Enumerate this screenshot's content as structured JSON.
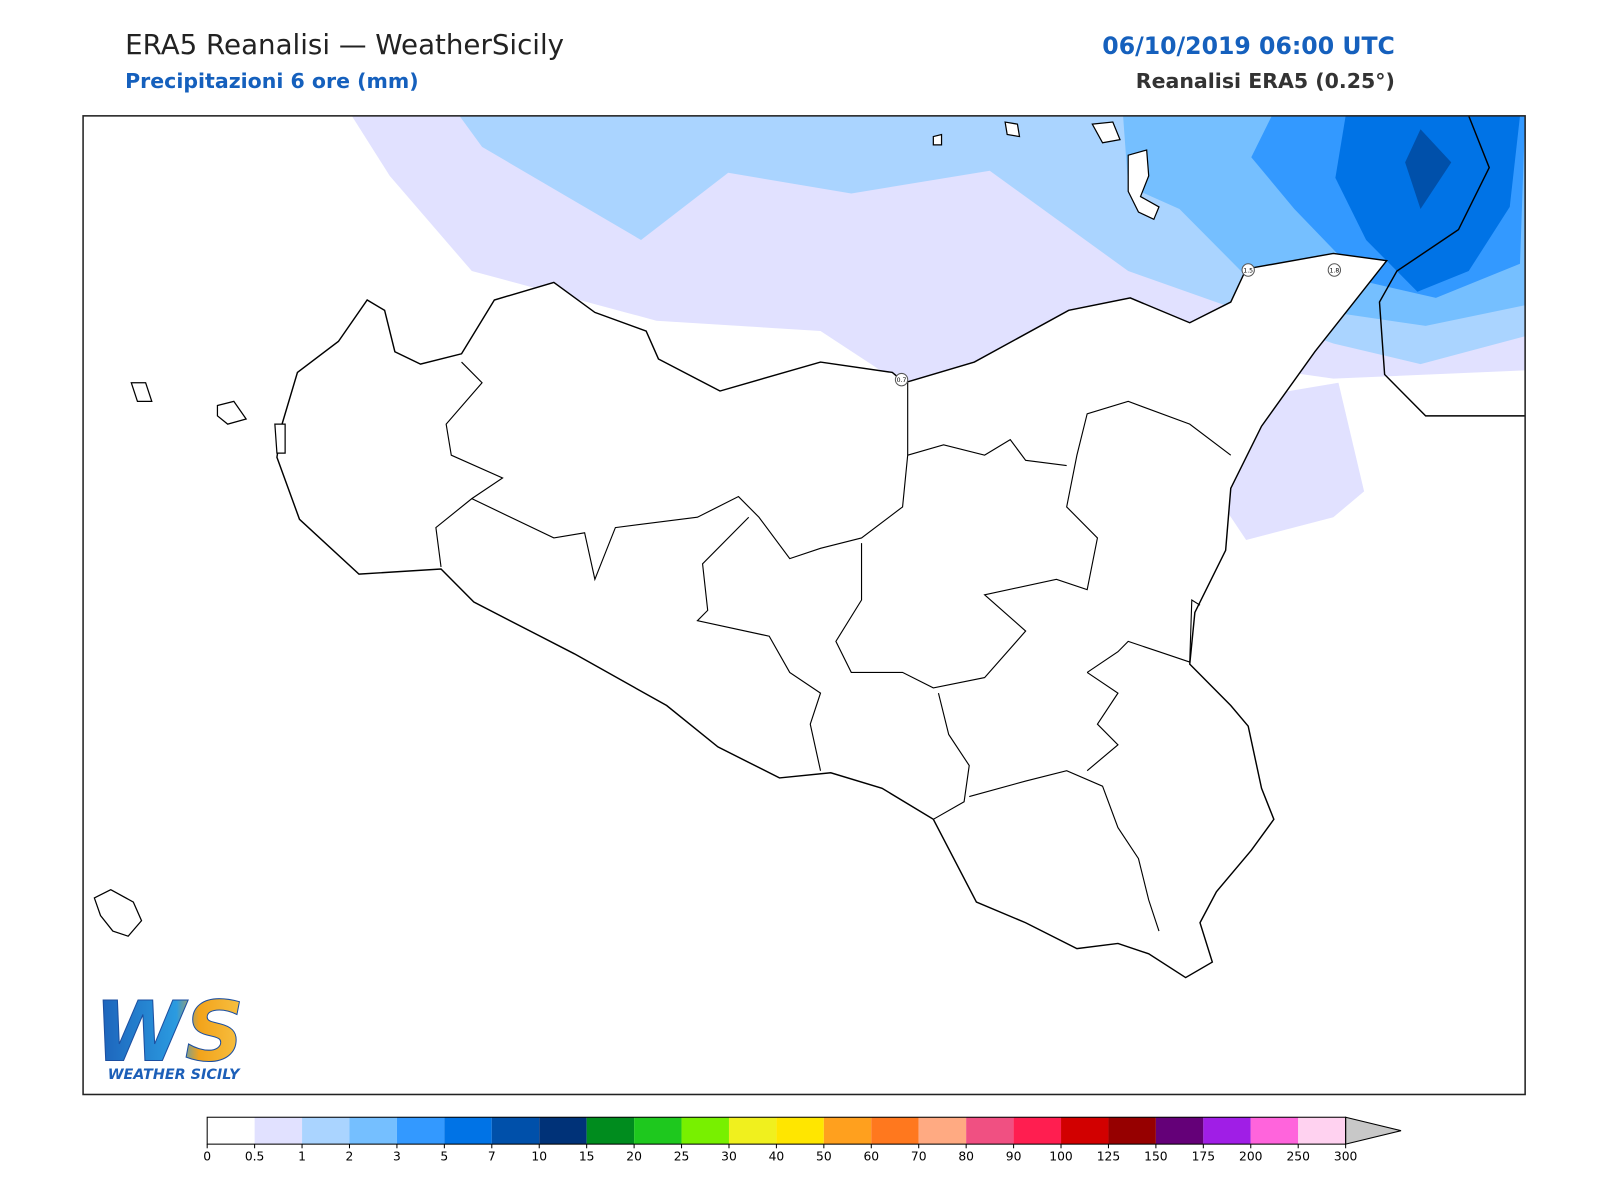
{
  "header": {
    "title": "ERA5 Reanalisi — WeatherSicily",
    "subtitle": "Precipitazioni 6 ore (mm)",
    "date": "06/10/2019 06:00 UTC",
    "model": "Reanalisi ERA5 (0.25°)"
  },
  "stations": [
    {
      "label": "1.5"
    },
    {
      "label": "1.8"
    },
    {
      "label": "0.7"
    }
  ],
  "logo": {
    "letters": "WS",
    "text": "WEATHER SICILY"
  },
  "colorbar": {
    "ticks": [
      0,
      0.5,
      1,
      2,
      3,
      5,
      7,
      10,
      15,
      20,
      25,
      30,
      40,
      50,
      60,
      70,
      80,
      90,
      100,
      125,
      150,
      175,
      200,
      250,
      300
    ],
    "colors": [
      "#ffffff",
      "#e1e1ff",
      "#aad4ff",
      "#75bfff",
      "#3399ff",
      "#0073e6",
      "#0050aa",
      "#003278",
      "#008c1e",
      "#1ec81e",
      "#78f000",
      "#f0f01e",
      "#ffe600",
      "#ffa01e",
      "#ff781e",
      "#ffaa82",
      "#f05082",
      "#ff1e50",
      "#d20000",
      "#960000",
      "#640078",
      "#a01ee6",
      "#ff64dc",
      "#ffd2f0"
    ],
    "over_color": "#c8c8c8"
  }
}
